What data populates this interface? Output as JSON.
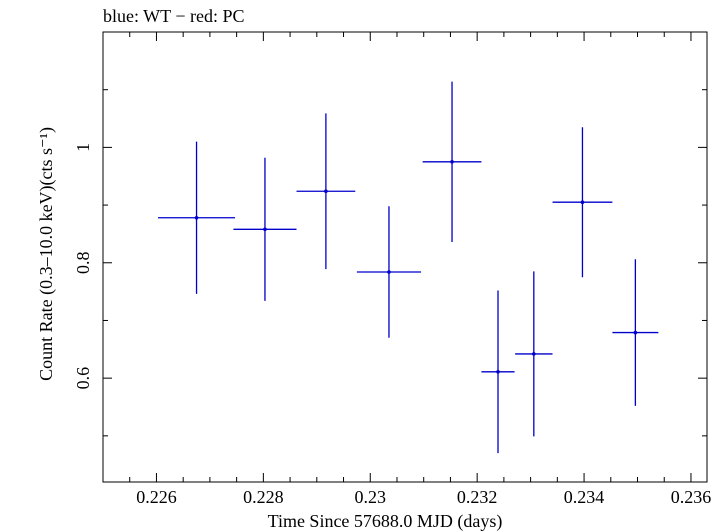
{
  "chart_data": {
    "type": "scatter",
    "title": "blue: WT − red: PC",
    "xlabel": "Time Since 57688.0 MJD (days)",
    "ylabel": "Count Rate (0.3–10.0 keV)(cts s⁻¹)",
    "xlim": [
      0.225,
      0.2363
    ],
    "ylim": [
      0.42,
      1.2
    ],
    "x_ticks": [
      0.226,
      0.228,
      0.23,
      0.232,
      0.234,
      0.236
    ],
    "x_tick_labels": [
      "0.226",
      "0.228",
      "0.23",
      "0.232",
      "0.234",
      "0.236"
    ],
    "y_ticks": [
      0.6,
      0.8,
      1.0
    ],
    "y_tick_labels": [
      "0.6",
      "0.8",
      "1"
    ],
    "colors": {
      "WT": "#0000cc",
      "axes": "#000000"
    },
    "series": [
      {
        "mode": "WT",
        "points": [
          {
            "x": 0.22675,
            "xerr": 0.00072,
            "y": 0.878,
            "yerr": 0.132
          },
          {
            "x": 0.22803,
            "xerr": 0.00059,
            "y": 0.858,
            "yerr": 0.124
          },
          {
            "x": 0.22917,
            "xerr": 0.00055,
            "y": 0.924,
            "yerr": 0.135
          },
          {
            "x": 0.23035,
            "xerr": 0.0006,
            "y": 0.784,
            "yerr": 0.114
          },
          {
            "x": 0.23153,
            "xerr": 0.00055,
            "y": 0.975,
            "yerr": 0.139
          },
          {
            "x": 0.23239,
            "xerr": 0.00031,
            "y": 0.611,
            "yerr": 0.141
          },
          {
            "x": 0.23306,
            "xerr": 0.00035,
            "y": 0.642,
            "yerr": 0.143
          },
          {
            "x": 0.23397,
            "xerr": 0.00056,
            "y": 0.905,
            "yerr": 0.13
          },
          {
            "x": 0.23496,
            "xerr": 0.00043,
            "y": 0.679,
            "yerr": 0.127
          }
        ]
      }
    ]
  }
}
